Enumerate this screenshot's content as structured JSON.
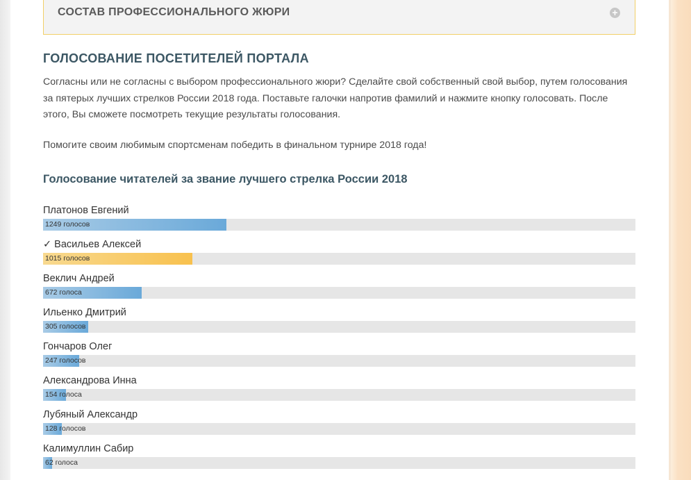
{
  "accordion": {
    "title": "СОСТАВ ПРОФЕССИОНАЛЬНОГО ЖЮРИ",
    "toggle_icon": "plus-circle-icon"
  },
  "section": {
    "title": "ГОЛОСОВАНИЕ ПОСЕТИТЕЛЕЙ ПОРТАЛА",
    "intro": "Согласны или не согласны с выбором профессионального жюри? Сделайте свой собственный свой выбор, путем голосования за пятерых лучших стрелков России 2018 года. Поставьте галочки напротив фамилий и нажмите кнопку голосовать. После этого, Вы сможете посмотреть текущие результаты голосования.",
    "cta": "Помогите своим любимым спортсменам победить в финальном турнире 2018 года!"
  },
  "poll": {
    "title": "Голосование читателей за звание лучшего стрелка России 2018",
    "max_votes": 4030,
    "items": [
      {
        "name": "Платонов Евгений",
        "votes": 1249,
        "votes_label": "1249 голосов",
        "voted": false
      },
      {
        "name": "✓ Васильев Алексей",
        "votes": 1015,
        "votes_label": "1015 голосов",
        "voted": true
      },
      {
        "name": "Веклич Андрей",
        "votes": 672,
        "votes_label": "672 голоса",
        "voted": false
      },
      {
        "name": "Ильенко Дмитрий",
        "votes": 305,
        "votes_label": "305 голосов",
        "voted": false
      },
      {
        "name": "Гончаров Олег",
        "votes": 247,
        "votes_label": "247 голосов",
        "voted": false
      },
      {
        "name": "Александрова Инна",
        "votes": 154,
        "votes_label": "154 голоса",
        "voted": false
      },
      {
        "name": "Лубяный Александр",
        "votes": 128,
        "votes_label": "128 голосов",
        "voted": false
      },
      {
        "name": "Калимуллин Сабир",
        "votes": 62,
        "votes_label": "62 голоса",
        "voted": false
      }
    ]
  },
  "colors": {
    "bar_default": "#6aa9d9",
    "bar_voted": "#f8c14e",
    "track": "#e6e6e6",
    "heading": "#3c5764",
    "accordion_border": "#f2cf66"
  }
}
